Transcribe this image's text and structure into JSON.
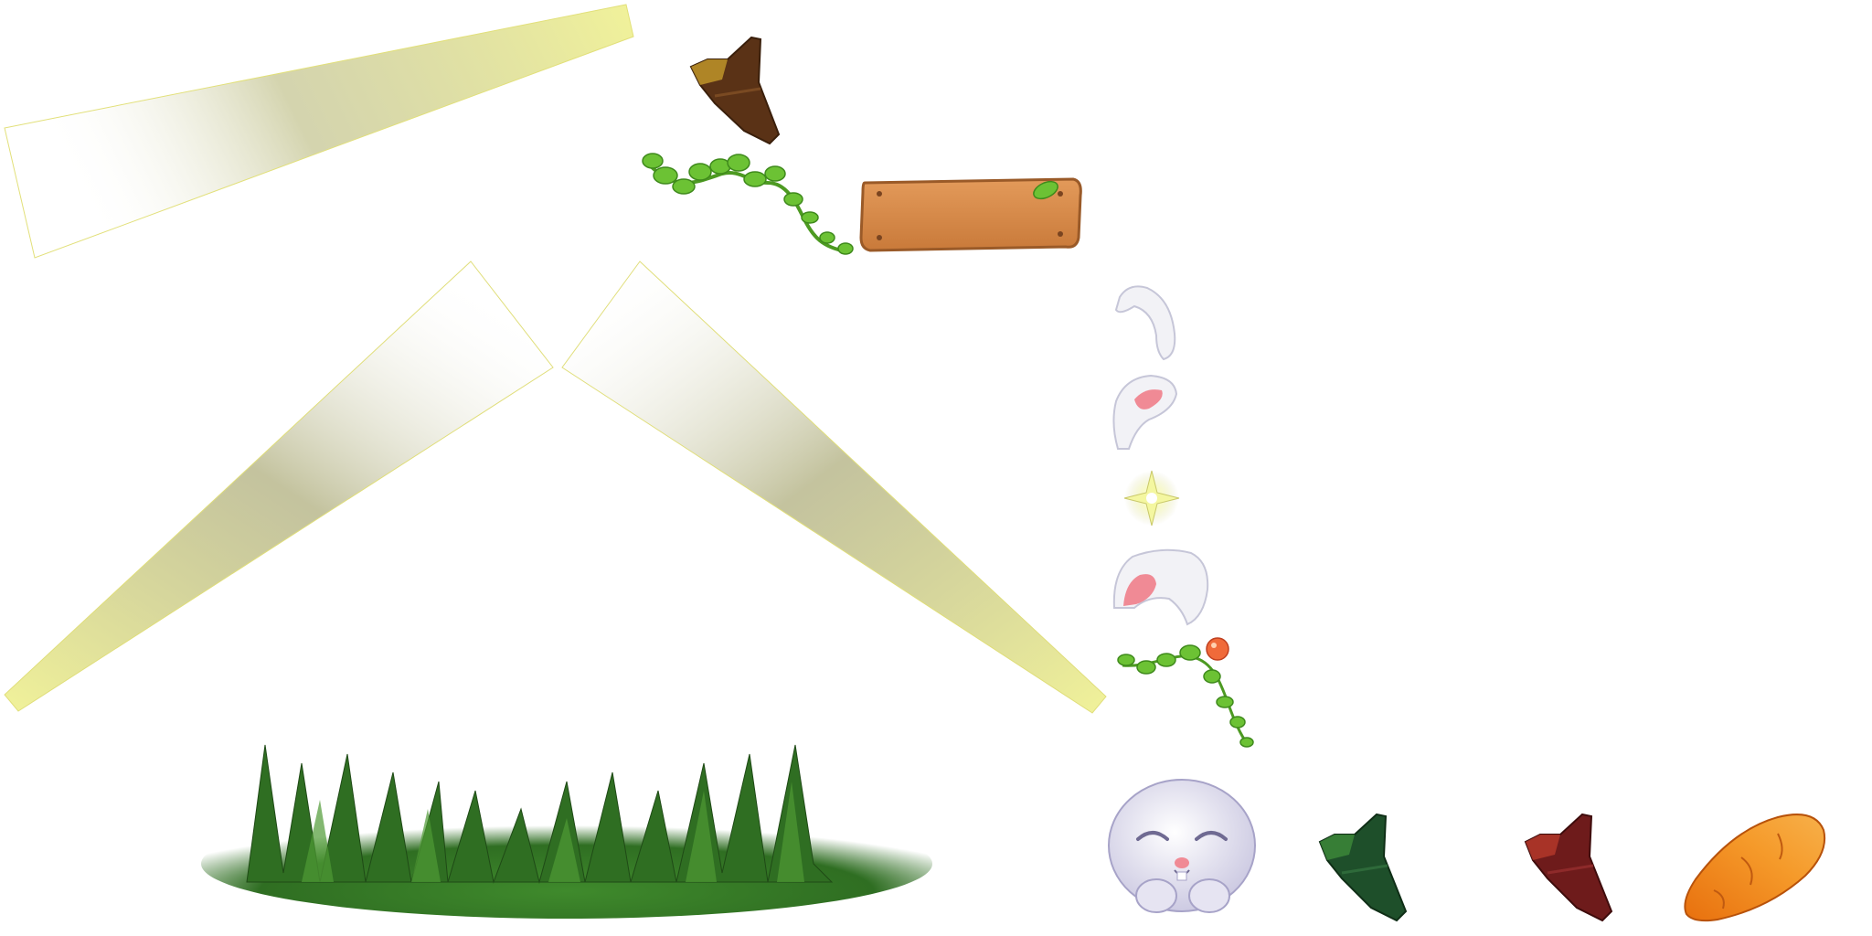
{
  "sheet": {
    "background": "#ffffff"
  },
  "sprites": [
    {
      "name": "light-beam-top",
      "icon": "light-beam",
      "color": "#f1f29a"
    },
    {
      "name": "light-beam-left",
      "icon": "light-beam",
      "color": "#f1f29a"
    },
    {
      "name": "light-beam-right",
      "icon": "light-beam",
      "color": "#f1f29a"
    },
    {
      "name": "flag-brown",
      "icon": "pennant-flag",
      "color": "#5a3216"
    },
    {
      "name": "vine-long",
      "icon": "leafy-vine",
      "color": "#6cc234"
    },
    {
      "name": "wooden-plank",
      "icon": "wood-sign",
      "color": "#d98a4a"
    },
    {
      "name": "bunny-ear-small",
      "icon": "bunny-ear",
      "color": "#f2f2f6"
    },
    {
      "name": "bunny-ear-pink",
      "icon": "bunny-ear",
      "color": "#f08a95"
    },
    {
      "name": "sparkle-star",
      "icon": "sparkle",
      "color": "#f4f7a0"
    },
    {
      "name": "bunny-ear-large",
      "icon": "bunny-ear",
      "color": "#f08a95"
    },
    {
      "name": "vine-berry",
      "icon": "vine-with-berry",
      "color": "#f06a3a"
    },
    {
      "name": "grass-patch",
      "icon": "grass",
      "color": "#2f6e22"
    },
    {
      "name": "bunny-head",
      "icon": "bunny-face",
      "color": "#eceaf6"
    },
    {
      "name": "flag-green",
      "icon": "pennant-flag",
      "color": "#1e4f2a"
    },
    {
      "name": "flag-red",
      "icon": "pennant-flag",
      "color": "#6e1b1b"
    },
    {
      "name": "carrot",
      "icon": "carrot",
      "color": "#f18a1e"
    }
  ]
}
